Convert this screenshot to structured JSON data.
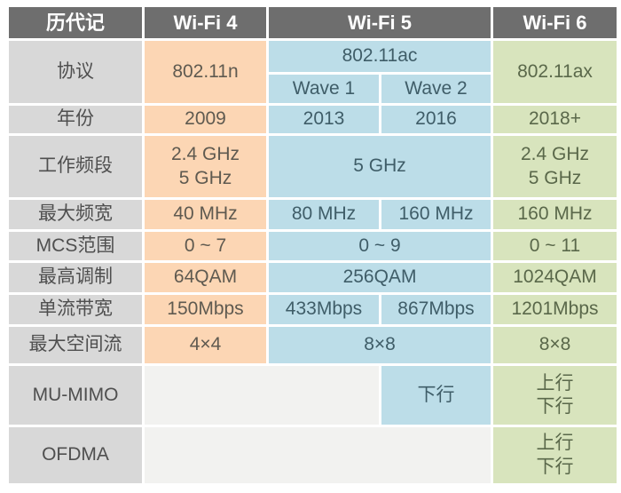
{
  "title": "Wi-Fi 历代记 comparison table",
  "colors": {
    "page_bg": "#ffffff",
    "header_bg": "#6e6e6e",
    "header_text": "#ffffff",
    "label_bg": "#d8d8d8",
    "label_text": "#4f4f4f",
    "wifi4_bg": "#fcd6b4",
    "wifi4_text": "#5f5a50",
    "wifi5_bg": "#bcdde8",
    "wifi5_text": "#3f5d68",
    "wifi6_bg": "#d8e4bd",
    "wifi6_text": "#5a684a",
    "blank_bg": "#f2f2f0"
  },
  "chart_data": {
    "type": "table",
    "title": "历代记 Wi-Fi 4 / Wi-Fi 5 / Wi-Fi 6 对比表",
    "columns": [
      "历代记",
      "Wi-Fi 4",
      "Wi-Fi 5 Wave 1",
      "Wi-Fi 5 Wave 2",
      "Wi-Fi 6"
    ],
    "rows": [
      [
        "协议",
        "802.11n",
        "802.11ac Wave 1",
        "802.11ac Wave 2",
        "802.11ax"
      ],
      [
        "年份",
        "2009",
        "2013",
        "2016",
        "2018+"
      ],
      [
        "工作频段",
        "2.4 GHz 5 GHz",
        "5 GHz",
        "5 GHz",
        "2.4 GHz 5 GHz"
      ],
      [
        "最大频宽",
        "40 MHz",
        "80 MHz",
        "160 MHz",
        "160 MHz"
      ],
      [
        "MCS范围",
        "0~7",
        "0~9",
        "0~9",
        "0~11"
      ],
      [
        "最高调制",
        "64QAM",
        "256QAM",
        "256QAM",
        "1024QAM"
      ],
      [
        "单流带宽",
        "150Mbps",
        "433Mbps",
        "867Mbps",
        "1201Mbps"
      ],
      [
        "最大空间流",
        "4×4",
        "8×8",
        "8×8",
        "8×8"
      ],
      [
        "MU-MIMO",
        "",
        "",
        "下行",
        "上行 下行"
      ],
      [
        "OFDMA",
        "",
        "",
        "",
        "上行 下行"
      ]
    ]
  },
  "table": {
    "cells": [
      {
        "name": "header-generation",
        "text": "历代记",
        "variant": "header",
        "r": 1,
        "c": 1
      },
      {
        "name": "header-wifi4",
        "text": "Wi-Fi 4",
        "variant": "header",
        "r": 1,
        "c": 2
      },
      {
        "name": "header-wifi5",
        "text": "Wi-Fi 5",
        "variant": "header",
        "r": 1,
        "c": 3,
        "cs": 2
      },
      {
        "name": "header-wifi6",
        "text": "Wi-Fi 6",
        "variant": "header",
        "r": 1,
        "c": 5
      },
      {
        "name": "label-protocol",
        "text": "协议",
        "variant": "label",
        "r": 2,
        "c": 1,
        "rs": 2
      },
      {
        "name": "cell-protocol-wifi4",
        "text": "802.11n",
        "variant": "wifi4",
        "r": 2,
        "c": 2,
        "rs": 2
      },
      {
        "name": "cell-protocol-wifi5-80211ac",
        "text": "802.11ac",
        "variant": "wifi5",
        "r": 2,
        "c": 3,
        "cs": 2
      },
      {
        "name": "cell-protocol-wifi5-wave1",
        "text": "Wave 1",
        "variant": "wifi5",
        "r": 3,
        "c": 3
      },
      {
        "name": "cell-protocol-wifi5-wave2",
        "text": "Wave 2",
        "variant": "wifi5",
        "r": 3,
        "c": 4
      },
      {
        "name": "cell-protocol-wifi6",
        "text": "802.11ax",
        "variant": "wifi6",
        "r": 2,
        "c": 5,
        "rs": 2
      },
      {
        "name": "label-year",
        "text": "年份",
        "variant": "label",
        "r": 4,
        "c": 1
      },
      {
        "name": "cell-year-wifi4",
        "text": "2009",
        "variant": "wifi4",
        "r": 4,
        "c": 2
      },
      {
        "name": "cell-year-wave1",
        "text": "2013",
        "variant": "wifi5",
        "r": 4,
        "c": 3
      },
      {
        "name": "cell-year-wave2",
        "text": "2016",
        "variant": "wifi5",
        "r": 4,
        "c": 4
      },
      {
        "name": "cell-year-wifi6",
        "text": "2018+",
        "variant": "wifi6",
        "r": 4,
        "c": 5
      },
      {
        "name": "label-bands",
        "text": "工作频段",
        "variant": "label",
        "r": 5,
        "c": 1
      },
      {
        "name": "cell-bands-wifi4",
        "text": "2.4 GHz\n5 GHz",
        "variant": "wifi4",
        "r": 5,
        "c": 2
      },
      {
        "name": "cell-bands-wifi5",
        "text": "5 GHz",
        "variant": "wifi5",
        "r": 5,
        "c": 3,
        "cs": 2
      },
      {
        "name": "cell-bands-wifi6",
        "text": "2.4 GHz\n5 GHz",
        "variant": "wifi6",
        "r": 5,
        "c": 5
      },
      {
        "name": "label-max-bandwidth",
        "text": "最大频宽",
        "variant": "label",
        "r": 6,
        "c": 1
      },
      {
        "name": "cell-max-bandwidth-wifi4",
        "text": "40 MHz",
        "variant": "wifi4",
        "r": 6,
        "c": 2
      },
      {
        "name": "cell-max-bandwidth-wave1",
        "text": "80 MHz",
        "variant": "wifi5",
        "r": 6,
        "c": 3
      },
      {
        "name": "cell-max-bandwidth-wave2",
        "text": "160 MHz",
        "variant": "wifi5",
        "r": 6,
        "c": 4
      },
      {
        "name": "cell-max-bandwidth-wifi6",
        "text": "160 MHz",
        "variant": "wifi6",
        "r": 6,
        "c": 5
      },
      {
        "name": "label-mcs-range",
        "text": "MCS范围",
        "variant": "label",
        "r": 7,
        "c": 1
      },
      {
        "name": "cell-mcs-range-wifi4",
        "text": "0 ~ 7",
        "variant": "wifi4",
        "r": 7,
        "c": 2
      },
      {
        "name": "cell-mcs-range-wifi5",
        "text": "0 ~ 9",
        "variant": "wifi5",
        "r": 7,
        "c": 3,
        "cs": 2
      },
      {
        "name": "cell-mcs-range-wifi6",
        "text": "0 ~ 11",
        "variant": "wifi6",
        "r": 7,
        "c": 5
      },
      {
        "name": "label-max-modulation",
        "text": "最高调制",
        "variant": "label",
        "r": 8,
        "c": 1
      },
      {
        "name": "cell-max-modulation-wifi4",
        "text": "64QAM",
        "variant": "wifi4",
        "r": 8,
        "c": 2
      },
      {
        "name": "cell-max-modulation-wifi5",
        "text": "256QAM",
        "variant": "wifi5",
        "r": 8,
        "c": 3,
        "cs": 2
      },
      {
        "name": "cell-max-modulation-wifi6",
        "text": "1024QAM",
        "variant": "wifi6",
        "r": 8,
        "c": 5
      },
      {
        "name": "label-single-stream-rate",
        "text": "单流带宽",
        "variant": "label",
        "r": 9,
        "c": 1
      },
      {
        "name": "cell-single-stream-rate-wifi4",
        "text": "150Mbps",
        "variant": "wifi4",
        "r": 9,
        "c": 2
      },
      {
        "name": "cell-single-stream-rate-wave1",
        "text": "433Mbps",
        "variant": "wifi5",
        "r": 9,
        "c": 3
      },
      {
        "name": "cell-single-stream-rate-wave2",
        "text": "867Mbps",
        "variant": "wifi5",
        "r": 9,
        "c": 4
      },
      {
        "name": "cell-single-stream-rate-wifi6",
        "text": "1201Mbps",
        "variant": "wifi6",
        "r": 9,
        "c": 5
      },
      {
        "name": "label-max-spatial-streams",
        "text": "最大空间流",
        "variant": "label",
        "r": 10,
        "c": 1
      },
      {
        "name": "cell-max-spatial-streams-wifi4",
        "text": "4×4",
        "variant": "wifi4",
        "r": 10,
        "c": 2
      },
      {
        "name": "cell-max-spatial-streams-wifi5",
        "text": "8×8",
        "variant": "wifi5",
        "r": 10,
        "c": 3,
        "cs": 2
      },
      {
        "name": "cell-max-spatial-streams-wifi6",
        "text": "8×8",
        "variant": "wifi6",
        "r": 10,
        "c": 5
      },
      {
        "name": "label-mu-mimo",
        "text": "MU-MIMO",
        "variant": "label",
        "r": 11,
        "c": 1
      },
      {
        "name": "cell-mu-mimo-blank",
        "text": "",
        "variant": "blank",
        "r": 11,
        "c": 2,
        "cs": 2
      },
      {
        "name": "cell-mu-mimo-wave2",
        "text": "下行",
        "variant": "wifi5",
        "r": 11,
        "c": 4
      },
      {
        "name": "cell-mu-mimo-wifi6",
        "text": "上行\n下行",
        "variant": "wifi6",
        "r": 11,
        "c": 5
      },
      {
        "name": "label-ofdma",
        "text": "OFDMA",
        "variant": "label",
        "r": 12,
        "c": 1
      },
      {
        "name": "cell-ofdma-blank",
        "text": "",
        "variant": "blank",
        "r": 12,
        "c": 2,
        "cs": 3
      },
      {
        "name": "cell-ofdma-wifi6",
        "text": "上行\n下行",
        "variant": "wifi6",
        "r": 12,
        "c": 5
      }
    ]
  }
}
